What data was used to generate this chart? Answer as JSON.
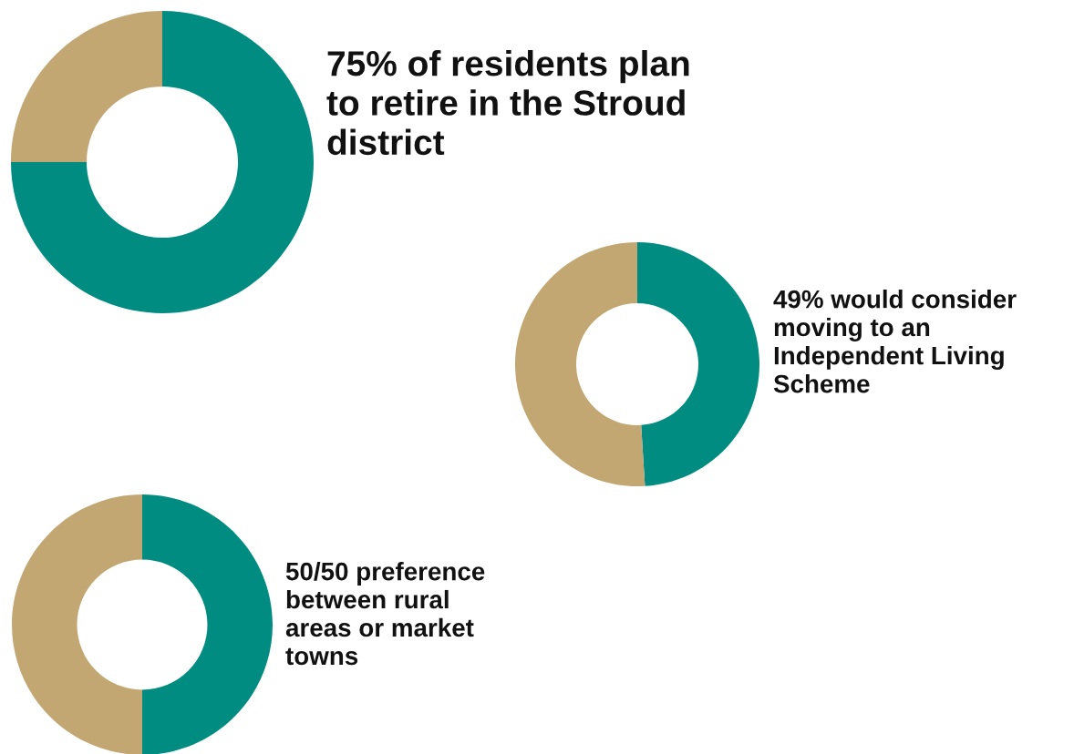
{
  "chart_data": [
    {
      "type": "donut",
      "categories": [
        null,
        null
      ],
      "values": [
        75,
        25
      ],
      "colors": [
        "#008c80",
        "#c2a773"
      ],
      "title": "75% of residents plan\nto retire in the Stroud\ndistrict"
    },
    {
      "type": "donut",
      "categories": [
        null,
        null
      ],
      "values": [
        49,
        51
      ],
      "colors": [
        "#008c80",
        "#c2a773"
      ],
      "title": "49% would consider\nmoving to an\nIndependent Living\nScheme"
    },
    {
      "type": "donut",
      "categories": [
        null,
        null
      ],
      "values": [
        50,
        50
      ],
      "colors": [
        "#008c80",
        "#c2a773"
      ],
      "title": "50/50 preference\nbetween rural\nareas or market\ntowns"
    }
  ]
}
